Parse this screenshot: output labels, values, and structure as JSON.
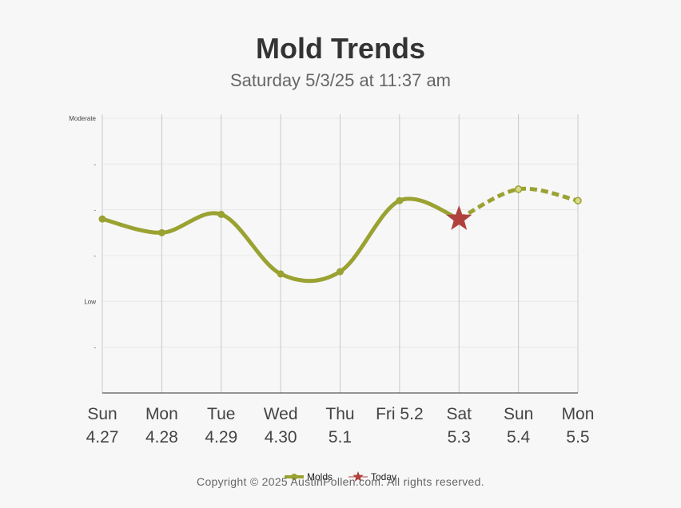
{
  "chart_data": {
    "type": "line",
    "title": "Mold Trends",
    "subtitle": "Saturday 5/3/25 at 11:37 am",
    "categories": [
      {
        "day": "Sun",
        "date": "4.27"
      },
      {
        "day": "Mon",
        "date": "4.28"
      },
      {
        "day": "Tue",
        "date": "4.29"
      },
      {
        "day": "Wed",
        "date": "4.30"
      },
      {
        "day": "Thu",
        "date": "5.1"
      },
      {
        "day": "Fri 5.2",
        "date": ""
      },
      {
        "day": "Sat",
        "date": "5.3"
      },
      {
        "day": "Sun",
        "date": "5.4"
      },
      {
        "day": "Mon",
        "date": "5.5"
      }
    ],
    "y_ticks": [
      {
        "value": 6,
        "label": "Moderate"
      },
      {
        "value": 5,
        "label": "-"
      },
      {
        "value": 4,
        "label": "-"
      },
      {
        "value": 3,
        "label": "-"
      },
      {
        "value": 2,
        "label": "Low"
      },
      {
        "value": 1,
        "label": "-"
      }
    ],
    "ylim": [
      0,
      6
    ],
    "grid": true,
    "series": [
      {
        "name": "Molds",
        "color": "#9aa232",
        "values": [
          3.8,
          3.5,
          3.9,
          2.6,
          2.65,
          4.2,
          3.8,
          4.45,
          4.2
        ],
        "forecast_from_index": 6
      }
    ],
    "today": {
      "label": "Today",
      "index": 6,
      "value": 3.8,
      "color": "#b0413e",
      "marker": "star-icon"
    },
    "legend": {
      "position": "bottom-center",
      "entries": [
        "Molds",
        "Today"
      ]
    }
  },
  "footer": {
    "copyright": "Copyright © 2025 AustinPollen.com.  All rights reserved."
  }
}
